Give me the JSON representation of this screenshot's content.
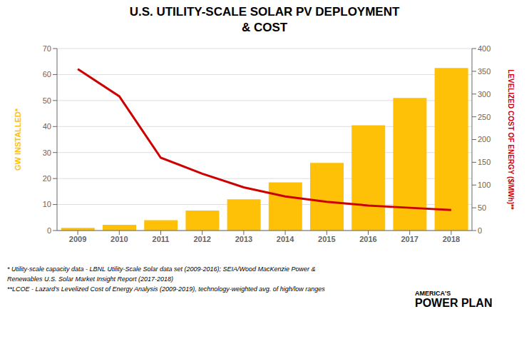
{
  "chart_data": {
    "type": "bar",
    "title": "U.S. UTILITY-SCALE SOLAR PV DEPLOYMENT\n& COST",
    "categories": [
      "2009",
      "2010",
      "2011",
      "2012",
      "2013",
      "2014",
      "2015",
      "2016",
      "2017",
      "2018"
    ],
    "series": [
      {
        "type": "bar",
        "color": "#FFC107",
        "values": [
          1.0,
          2.2,
          4.0,
          7.7,
          12.0,
          18.5,
          26.0,
          40.5,
          51.0,
          62.5
        ]
      },
      {
        "type": "line",
        "color": "#CC0000",
        "axis": "y2",
        "values": [
          355,
          295,
          160,
          125,
          95,
          75,
          63,
          55,
          50,
          45
        ]
      }
    ],
    "ylabel": "GW INSTALLED*",
    "y2label": "LEVELIZED COST OF ENERGY ($/MWh)**",
    "ylim": [
      0,
      70
    ],
    "yticks": [
      0,
      10,
      20,
      30,
      40,
      50,
      60,
      70
    ],
    "y2lim": [
      0,
      400
    ],
    "y2ticks": [
      0,
      50,
      100,
      150,
      200,
      250,
      300,
      350,
      400
    ],
    "grid": true,
    "annotations": [
      "* Utility-scale capacity data - LBNL Utility-Scale Solar data set (2009-2016); SEIA/Wood MacKenzie Power &",
      "Renewables U.S. Solar Market Insight Report (2017-2018)",
      "**LCOE - Lazard’s Levelized Cost of Energy Analysis (2009-2019), technology-weighted avg. of high/low ranges",
      "AMERICA'S",
      "POWER PLAN"
    ]
  }
}
